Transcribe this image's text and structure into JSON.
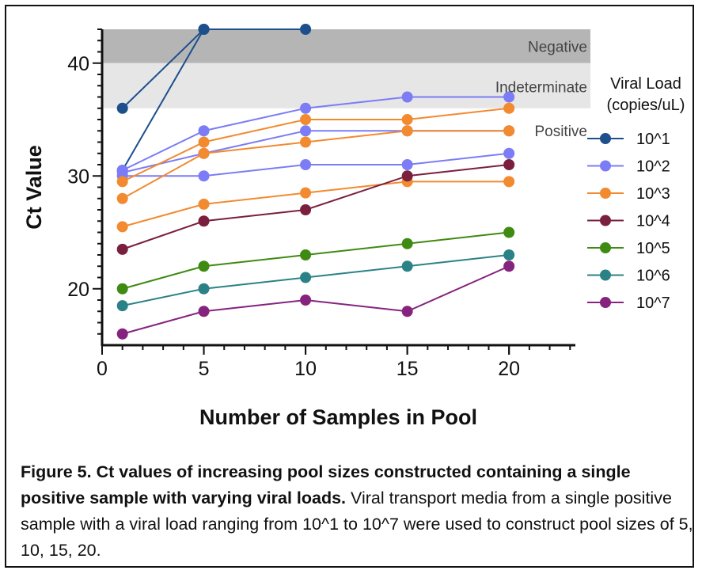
{
  "chart_data": {
    "type": "line",
    "xlabel": "Number of Samples in Pool",
    "ylabel": "Ct Value",
    "xlim": [
      0,
      24
    ],
    "ylim": [
      15,
      43
    ],
    "xticks": [
      0,
      5,
      10,
      15,
      20
    ],
    "yticks": [
      20,
      30,
      40
    ],
    "legend_title": [
      "Viral Load",
      "(copies/uL)"
    ],
    "legend_placement": "right",
    "zones": [
      {
        "label": "Negative",
        "from": 40,
        "to": 43,
        "color": "#b5b5b5"
      },
      {
        "label": "Indeterminate",
        "from": 36,
        "to": 40,
        "color": "#e6e6e6"
      },
      {
        "label": "Positive",
        "from": 15,
        "to": 36,
        "color": "#ffffff"
      }
    ],
    "series": [
      {
        "name": "10^1",
        "color": "#1c4f8c",
        "lines": [
          {
            "x": [
              1,
              5,
              10
            ],
            "y": [
              36,
              43,
              43
            ]
          },
          {
            "x": [
              1,
              5
            ],
            "y": [
              30.5,
              43
            ]
          }
        ]
      },
      {
        "name": "10^2",
        "color": "#7c7cf6",
        "lines": [
          {
            "x": [
              1,
              5,
              10,
              15,
              20
            ],
            "y": [
              30.5,
              34,
              36,
              37,
              37
            ]
          },
          {
            "x": [
              1,
              5,
              10,
              15,
              20
            ],
            "y": [
              30.3,
              32,
              34,
              34,
              34
            ]
          },
          {
            "x": [
              1,
              5,
              10,
              15,
              20
            ],
            "y": [
              30,
              30,
              31,
              31,
              32
            ]
          }
        ]
      },
      {
        "name": "10^3",
        "color": "#f28a30",
        "lines": [
          {
            "x": [
              1,
              5,
              10,
              15,
              20
            ],
            "y": [
              29.5,
              33,
              35,
              35,
              36
            ]
          },
          {
            "x": [
              1,
              5,
              10,
              15,
              20
            ],
            "y": [
              28,
              32,
              33,
              34,
              34
            ]
          },
          {
            "x": [
              1,
              5,
              10,
              15,
              20
            ],
            "y": [
              25.5,
              27.5,
              28.5,
              29.5,
              29.5
            ]
          }
        ]
      },
      {
        "name": "10^4",
        "color": "#7a1f3d",
        "lines": [
          {
            "x": [
              1,
              5,
              10,
              15,
              20
            ],
            "y": [
              23.5,
              26,
              27,
              30,
              31
            ]
          }
        ]
      },
      {
        "name": "10^5",
        "color": "#3f8a12",
        "lines": [
          {
            "x": [
              1,
              5,
              10,
              15,
              20
            ],
            "y": [
              20,
              22,
              23,
              24,
              25
            ]
          }
        ]
      },
      {
        "name": "10^6",
        "color": "#2b8286",
        "lines": [
          {
            "x": [
              1,
              5,
              10,
              15,
              20
            ],
            "y": [
              18.5,
              20,
              21,
              22,
              23
            ]
          }
        ]
      },
      {
        "name": "10^7",
        "color": "#85237f",
        "lines": [
          {
            "x": [
              1,
              5,
              10,
              15,
              20
            ],
            "y": [
              16,
              18,
              19,
              18,
              22
            ]
          }
        ]
      }
    ]
  },
  "caption": {
    "bold": "Figure 5. Ct values of increasing pool sizes constructed containing a single positive sample with varying viral loads.",
    "text": " Viral transport media from a single positive sample with a viral load ranging from 10^1 to 10^7 were used to construct pool sizes of 5, 10, 15, 20."
  }
}
